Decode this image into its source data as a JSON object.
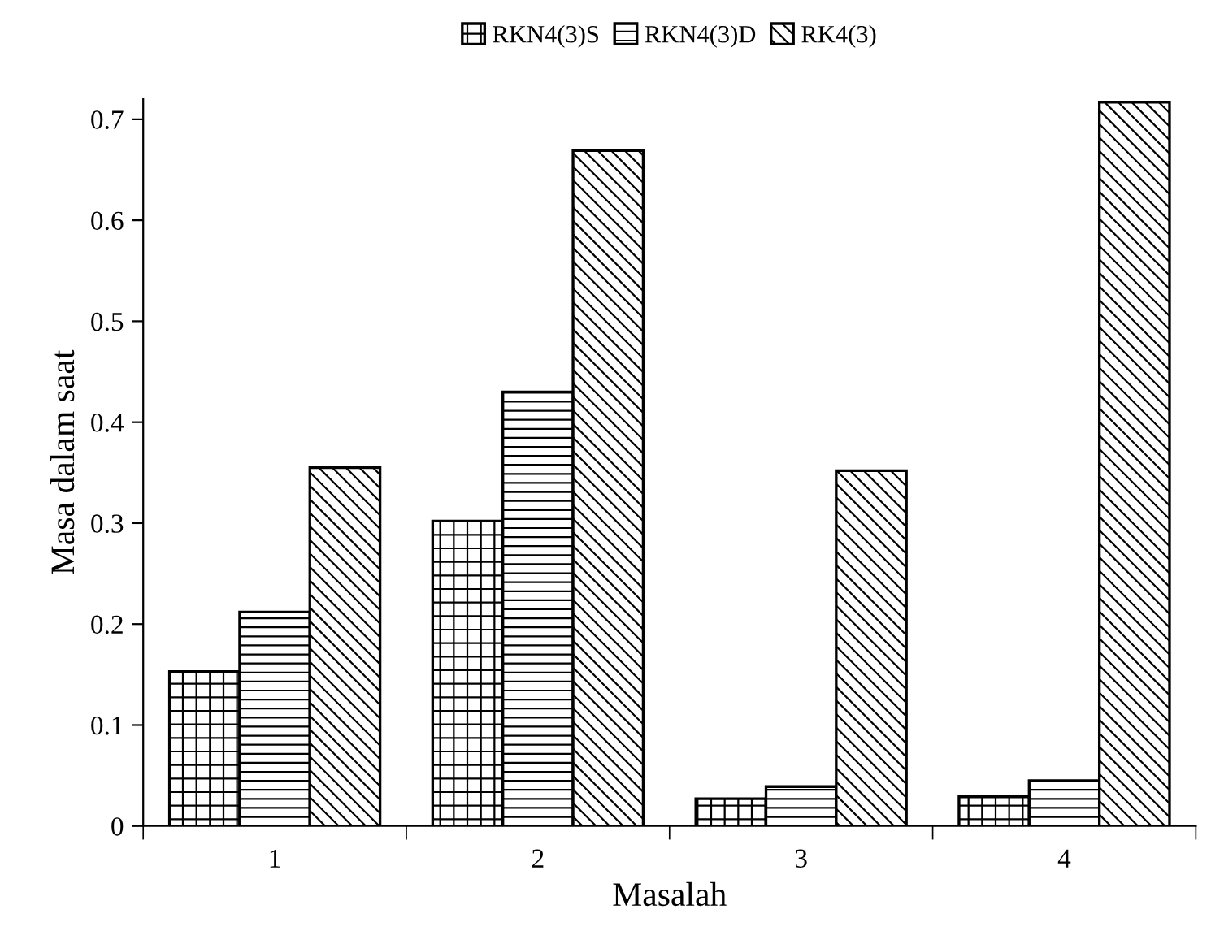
{
  "chart_data": {
    "type": "bar",
    "xlabel": "Masalah",
    "ylabel": "Masa dalam saat",
    "categories": [
      "1",
      "2",
      "3",
      "4"
    ],
    "series": [
      {
        "name": "RKN4(3)S",
        "color": "#000000",
        "values": [
          0.153,
          0.302,
          0.027,
          0.029
        ]
      },
      {
        "name": "RKN4(3)D",
        "color": "#000000",
        "values": [
          0.212,
          0.43,
          0.039,
          0.045
        ]
      },
      {
        "name": "RK4(3)",
        "color": "#000000",
        "values": [
          0.355,
          0.669,
          0.352,
          0.717
        ]
      }
    ],
    "ylim": [
      0,
      0.72
    ],
    "yticks": [
      0,
      0.1,
      0.2,
      0.3,
      0.4,
      0.5,
      0.6,
      0.7
    ],
    "grid": false,
    "legend": "top"
  }
}
